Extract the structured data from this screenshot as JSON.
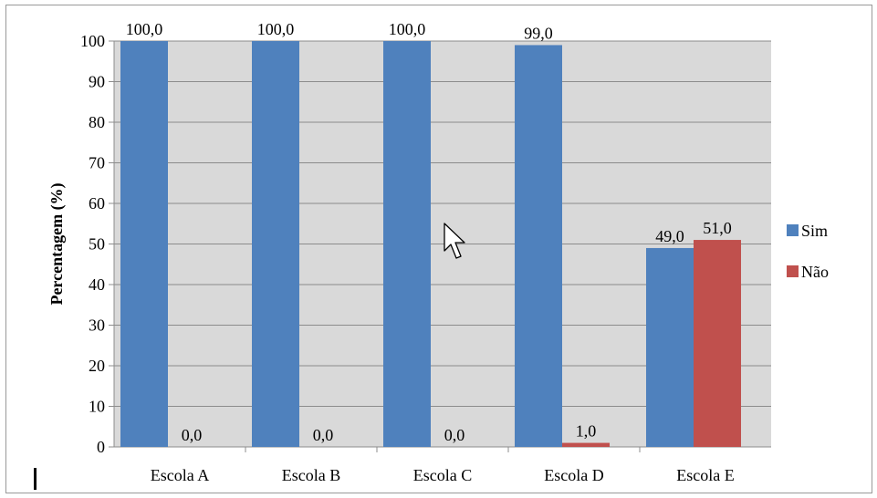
{
  "chart_data": {
    "type": "bar",
    "title": "",
    "xlabel": "",
    "ylabel": "Percentagem (%)",
    "ylim": [
      0,
      100
    ],
    "yticks": [
      "0",
      "10",
      "20",
      "30",
      "40",
      "50",
      "60",
      "70",
      "80",
      "90",
      "100"
    ],
    "categories": [
      "Escola A",
      "Escola B",
      "Escola C",
      "Escola D",
      "Escola E"
    ],
    "series": [
      {
        "name": "Sim",
        "color": "#4f81bd",
        "values": [
          100.0,
          100.0,
          100.0,
          99.0,
          49.0
        ],
        "labels": [
          "100,0",
          "100,0",
          "100,0",
          "99,0",
          "49,0"
        ]
      },
      {
        "name": "Não",
        "color": "#c0504d",
        "values": [
          0.0,
          0.0,
          0.0,
          1.0,
          51.0
        ],
        "labels": [
          "0,0",
          "0,0",
          "0,0",
          "1,0",
          "51,0"
        ]
      }
    ],
    "grid": true,
    "plot_background": "#d9d9d9",
    "legend_position": "right"
  }
}
